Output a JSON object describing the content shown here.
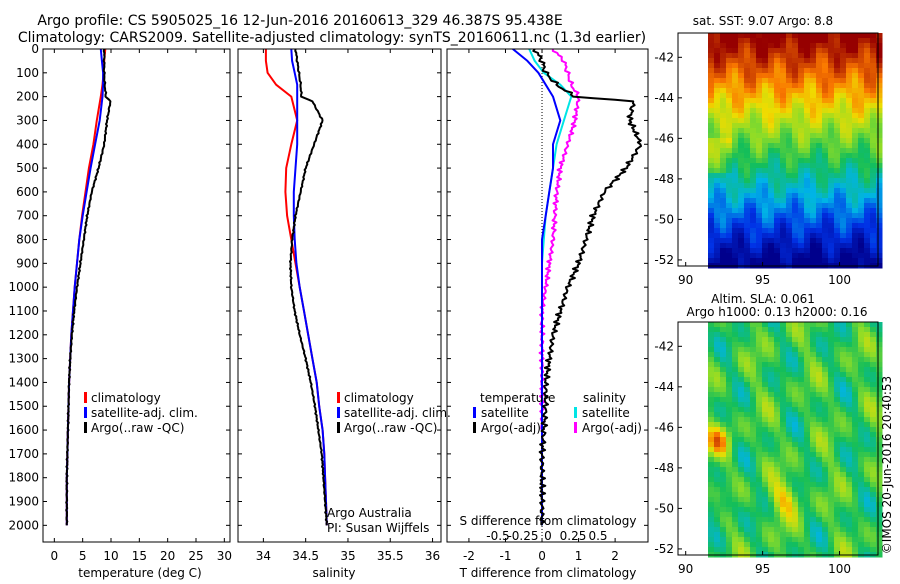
{
  "header": {
    "line1": "Argo profile: CS 5905025_16 12-Jun-2016 20160613_329 46.387S 95.438E",
    "line2": "Climatology: CARS2009. Satellite-adjusted climatology: synTS_20160611.nc (1.3d earlier)"
  },
  "colors": {
    "climatology": "#ff0000",
    "satellite": "#0000ff",
    "argo": "#000000",
    "salinity_satellite": "#00e5e5",
    "salinity_argo": "#ff00ff"
  },
  "panels": {
    "temperature": {
      "xlabel": "temperature (deg C)",
      "legend": [
        "climatology",
        "satellite-adj. clim.",
        "Argo(..raw -QC)"
      ]
    },
    "salinity": {
      "xlabel": "salinity",
      "legend": [
        "climatology",
        "satellite-adj. clim.",
        "Argo(..raw -QC)"
      ],
      "credit1": "Argo Australia",
      "credit2": "PI: Susan Wijffels"
    },
    "difference": {
      "xlabel": "T difference from climatology",
      "s_label": "S difference from climatology",
      "legend_temp_title": "temperature",
      "legend_sal_title": "salinity",
      "legend_temp": [
        "satellite",
        "Argo(-adj)"
      ],
      "legend_sal": [
        "satellite",
        "Argo(-adj)"
      ]
    },
    "sst_map": {
      "title": "sat. SST: 9.07 Argo: 8.8"
    },
    "sla_map": {
      "title1": "Altim. SLA: 0.061",
      "title2": "Argo h1000: 0.13 h2000: 0.16"
    }
  },
  "stamp": "©IMOS 20-Jun-2016 20:40:53",
  "chart_data": [
    {
      "type": "line",
      "title": "",
      "xlabel": "temperature (deg C)",
      "ylabel": "",
      "xlim": [
        -2,
        31
      ],
      "ylim": [
        2070,
        0
      ],
      "xticks": [
        0,
        5,
        10,
        15,
        20,
        25,
        30
      ],
      "yticks": [
        0,
        100,
        200,
        300,
        400,
        500,
        600,
        700,
        800,
        900,
        1000,
        1100,
        1200,
        1300,
        1400,
        1500,
        1600,
        1700,
        1800,
        1900,
        2000
      ],
      "series": [
        {
          "name": "climatology",
          "x": [
            9.0,
            8.8,
            8.7,
            8.5,
            8.2,
            7.5,
            6.9,
            6.1,
            5.5,
            4.9,
            4.4,
            4.0,
            3.6,
            3.3,
            3.0,
            2.8,
            2.6,
            2.5,
            2.4,
            2.3,
            2.2,
            2.2
          ],
          "y": [
            0,
            50,
            100,
            150,
            200,
            300,
            400,
            500,
            600,
            700,
            800,
            900,
            1000,
            1100,
            1200,
            1300,
            1400,
            1500,
            1600,
            1700,
            1800,
            2000
          ]
        },
        {
          "name": "satellite-adj. clim.",
          "x": [
            8.2,
            8.4,
            8.6,
            8.6,
            8.5,
            8.0,
            7.2,
            6.4,
            5.7,
            5.0,
            4.4,
            4.0,
            3.6,
            3.3,
            3.0,
            2.8,
            2.6,
            2.5,
            2.4,
            2.3,
            2.2,
            2.2
          ],
          "y": [
            0,
            50,
            100,
            150,
            200,
            300,
            400,
            500,
            600,
            700,
            800,
            900,
            1000,
            1100,
            1200,
            1300,
            1400,
            1500,
            1600,
            1700,
            1800,
            2000
          ]
        },
        {
          "name": "Argo(..raw -QC)",
          "x": [
            8.8,
            8.8,
            8.8,
            8.9,
            9.1,
            9.9,
            9.3,
            8.8,
            7.8,
            6.6,
            5.8,
            5.2,
            4.6,
            4.0,
            3.5,
            3.1,
            2.8,
            2.6,
            2.5,
            2.4,
            2.3,
            2.2,
            2.2
          ],
          "y": [
            0,
            50,
            100,
            150,
            200,
            220,
            300,
            400,
            500,
            600,
            700,
            800,
            900,
            1000,
            1100,
            1200,
            1300,
            1400,
            1500,
            1600,
            1700,
            1800,
            2000
          ]
        }
      ]
    },
    {
      "type": "line",
      "title": "",
      "xlabel": "salinity",
      "ylabel": "",
      "xlim": [
        33.7,
        36.1
      ],
      "ylim": [
        2070,
        0
      ],
      "xticks": [
        34,
        34.5,
        35,
        35.5,
        36
      ],
      "series": [
        {
          "name": "climatology",
          "x": [
            34.03,
            34.03,
            34.05,
            34.15,
            34.33,
            34.4,
            34.33,
            34.27,
            34.26,
            34.28,
            34.33,
            34.38,
            34.43,
            34.48,
            34.53,
            34.58,
            34.63,
            34.66,
            34.7,
            34.72,
            34.73,
            34.74,
            34.75
          ],
          "y": [
            0,
            50,
            100,
            150,
            200,
            300,
            400,
            500,
            600,
            700,
            800,
            900,
            1000,
            1100,
            1200,
            1300,
            1400,
            1500,
            1600,
            1700,
            1800,
            1900,
            2000
          ]
        },
        {
          "name": "satellite-adj. clim.",
          "x": [
            34.33,
            34.34,
            34.37,
            34.4,
            34.4,
            34.4,
            34.4,
            34.38,
            34.36,
            34.36,
            34.37,
            34.39,
            34.43,
            34.48,
            34.53,
            34.58,
            34.63,
            34.66,
            34.7,
            34.72,
            34.73,
            34.74,
            34.75
          ],
          "y": [
            0,
            50,
            100,
            150,
            200,
            300,
            400,
            500,
            600,
            700,
            800,
            900,
            1000,
            1100,
            1200,
            1300,
            1400,
            1500,
            1600,
            1700,
            1800,
            1900,
            2000
          ]
        },
        {
          "name": "Argo(..raw -QC)",
          "x": [
            34.38,
            34.4,
            34.42,
            34.44,
            34.45,
            34.58,
            34.7,
            34.6,
            34.5,
            34.44,
            34.38,
            34.34,
            34.32,
            34.33,
            34.37,
            34.43,
            34.5,
            34.56,
            34.61,
            34.65,
            34.69,
            34.71,
            34.73,
            34.75
          ],
          "y": [
            0,
            50,
            100,
            150,
            200,
            220,
            300,
            400,
            500,
            600,
            700,
            800,
            900,
            1000,
            1100,
            1200,
            1300,
            1400,
            1500,
            1600,
            1700,
            1800,
            1900,
            2000
          ]
        }
      ]
    },
    {
      "type": "line",
      "title": "",
      "xlabel": "T difference from climatology",
      "ylabel": "",
      "xlim": [
        -2.6,
        2.9
      ],
      "ylim": [
        2070,
        0
      ],
      "xticks": [
        -2,
        -1,
        0,
        1,
        2
      ],
      "secondary_xlabel": "S difference from climatology",
      "secondary_xticks": [
        -0.5,
        -0.25,
        0,
        0.25,
        0.5
      ],
      "series": [
        {
          "name": "temperature satellite",
          "x": [
            -0.8,
            -0.4,
            -0.1,
            0.1,
            0.3,
            0.5,
            0.3,
            0.3,
            0.2,
            0.1,
            0.0,
            0.0,
            0.0,
            0.0,
            0.0,
            0.0,
            0.0,
            0.0,
            0.0,
            0.0
          ],
          "y": [
            0,
            50,
            100,
            150,
            200,
            300,
            400,
            500,
            600,
            700,
            800,
            900,
            1000,
            1100,
            1200,
            1300,
            1400,
            1500,
            1700,
            2000
          ]
        },
        {
          "name": "temperature Argo(-adj)",
          "x": [
            -0.2,
            0.0,
            0.1,
            0.4,
            0.9,
            2.5,
            2.4,
            2.7,
            2.3,
            1.7,
            1.4,
            1.2,
            1.0,
            0.7,
            0.5,
            0.3,
            0.2,
            0.1,
            0.1,
            0.0,
            0.0
          ],
          "y": [
            0,
            50,
            100,
            150,
            200,
            220,
            300,
            400,
            500,
            600,
            700,
            800,
            900,
            1000,
            1100,
            1200,
            1300,
            1400,
            1500,
            1700,
            2000
          ]
        },
        {
          "name": "salinity satellite",
          "x": [
            -0.35,
            -0.2,
            0.05,
            0.5,
            0.8,
            0.6,
            0.4,
            0.3,
            0.2,
            0.1,
            0.05,
            0.0,
            0.0,
            0.0,
            0.0,
            0.0,
            0.0,
            0.0
          ],
          "y": [
            0,
            50,
            100,
            150,
            200,
            300,
            400,
            500,
            600,
            700,
            800,
            900,
            1000,
            1100,
            1200,
            1300,
            1500,
            2000
          ]
        },
        {
          "name": "salinity Argo(-adj)",
          "x": [
            0.3,
            0.6,
            0.7,
            0.8,
            1.0,
            0.9,
            0.7,
            0.5,
            0.4,
            0.3,
            0.2,
            0.1,
            0.0,
            0.0,
            0.0
          ],
          "y": [
            0,
            50,
            100,
            150,
            200,
            300,
            400,
            500,
            600,
            800,
            900,
            1000,
            1100,
            1300,
            1600
          ]
        }
      ]
    },
    {
      "type": "heatmap",
      "title": "sat. SST: 9.07 Argo: 8.8",
      "xlim": [
        89.5,
        102.5
      ],
      "ylim": [
        -52.3,
        -40.8
      ],
      "xticks": [
        90,
        95,
        100
      ],
      "yticks": [
        -42,
        -44,
        -46,
        -48,
        -50,
        -52
      ],
      "argo_position": [
        95.438,
        -46.387
      ]
    },
    {
      "type": "heatmap",
      "title": "Altim. SLA: 0.061",
      "subtitle": "Argo h1000: 0.13 h2000: 0.16",
      "xlim": [
        89.5,
        102.5
      ],
      "ylim": [
        -52.3,
        -40.8
      ],
      "xticks": [
        90,
        95,
        100
      ],
      "yticks": [
        -42,
        -44,
        -46,
        -48,
        -50,
        -52
      ]
    }
  ]
}
